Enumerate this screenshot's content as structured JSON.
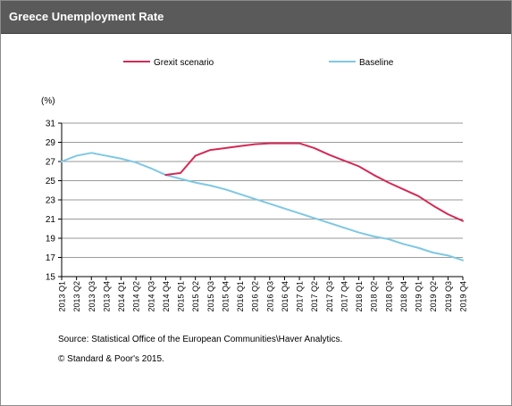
{
  "colors": {
    "title_bar": "#5a5a5a",
    "grexit": "#d42a55",
    "baseline": "#7ec8e3",
    "grid": "#9a9a9a"
  },
  "chart_data": {
    "type": "line",
    "title": "Greece Unemployment Rate",
    "ylabel": "(%)",
    "ylim": [
      15,
      31
    ],
    "yticks": [
      15,
      17,
      19,
      21,
      23,
      25,
      27,
      29,
      31
    ],
    "grid": true,
    "legend_position": "top",
    "categories": [
      "2013 Q1",
      "2013 Q2",
      "2013 Q3",
      "2013 Q4",
      "2014 Q1",
      "2014 Q2",
      "2014 Q3",
      "2014 Q4",
      "2015 Q1",
      "2015 Q2",
      "2015 Q3",
      "2015 Q4",
      "2016 Q1",
      "2016 Q2",
      "2016 Q3",
      "2016 Q4",
      "2017 Q1",
      "2017 Q2",
      "2017 Q3",
      "2017 Q4",
      "2018 Q1",
      "2018 Q2",
      "2018 Q3",
      "2018 Q4",
      "2019 Q1",
      "2019 Q2",
      "2019 Q3",
      "2019 Q4"
    ],
    "series": [
      {
        "name": "Grexit scenario",
        "color": "#d42a55",
        "values": [
          null,
          null,
          null,
          null,
          null,
          null,
          null,
          25.6,
          25.8,
          27.6,
          28.2,
          28.4,
          28.6,
          28.8,
          28.9,
          28.9,
          28.9,
          28.4,
          27.7,
          27.1,
          26.5,
          25.6,
          24.8,
          24.1,
          23.4,
          22.4,
          21.5,
          20.8
        ]
      },
      {
        "name": "Baseline",
        "color": "#7ec8e3",
        "values": [
          27.0,
          27.6,
          27.9,
          27.6,
          27.3,
          26.9,
          26.3,
          25.6,
          25.2,
          24.8,
          24.5,
          24.1,
          23.6,
          23.1,
          22.6,
          22.1,
          21.6,
          21.1,
          20.6,
          20.1,
          19.6,
          19.2,
          18.9,
          18.4,
          18.0,
          17.5,
          17.2,
          16.7
        ]
      }
    ]
  },
  "footer": {
    "source": "Source: Statistical Office of the European Communities\\Haver  Analytics.",
    "copyright": "© Standard & Poor's 2015."
  }
}
